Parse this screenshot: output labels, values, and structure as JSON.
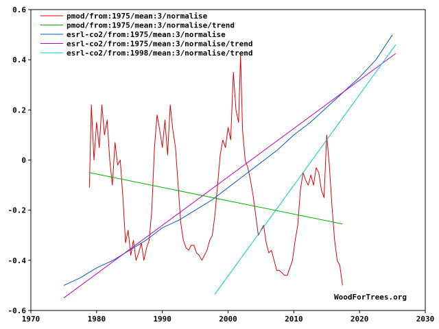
{
  "chart_data": {
    "type": "line",
    "title": "",
    "xlabel": "",
    "ylabel": "",
    "xlim": [
      1970,
      2030
    ],
    "ylim": [
      -0.6,
      0.6
    ],
    "grid": false,
    "legend_position": "top-left",
    "credit": "WoodForTrees.org",
    "x_ticks": [
      {
        "value": 1970,
        "label": "1970"
      },
      {
        "value": 1980,
        "label": "1980"
      },
      {
        "value": 1990,
        "label": "1990"
      },
      {
        "value": 2000,
        "label": "2000"
      },
      {
        "value": 2010,
        "label": "2010"
      },
      {
        "value": 2020,
        "label": "2020"
      },
      {
        "value": 2030,
        "label": "2030"
      }
    ],
    "y_ticks": [
      {
        "value": 0.6,
        "label": "0.6"
      },
      {
        "value": 0.4,
        "label": "0.4"
      },
      {
        "value": 0.2,
        "label": "0.2"
      },
      {
        "value": 0,
        "label": "0"
      },
      {
        "value": -0.2,
        "label": "-0.2"
      },
      {
        "value": -0.4,
        "label": "-0.4"
      },
      {
        "value": -0.6,
        "label": "-0.6"
      }
    ],
    "series": [
      {
        "name": "pmod/from:1975/mean:3/normalise",
        "color": "#dd0000",
        "x": [
          1978.9,
          1979.2,
          1979.6,
          1980.0,
          1980.4,
          1980.8,
          1981.2,
          1981.6,
          1982.0,
          1982.4,
          1982.8,
          1983.2,
          1983.6,
          1984.0,
          1984.4,
          1984.8,
          1985.2,
          1985.6,
          1986.0,
          1986.4,
          1986.8,
          1987.2,
          1987.6,
          1988.0,
          1988.4,
          1988.8,
          1989.2,
          1989.6,
          1990.0,
          1990.4,
          1990.8,
          1991.2,
          1991.6,
          1992.0,
          1992.4,
          1992.8,
          1993.2,
          1993.6,
          1994.0,
          1994.4,
          1994.8,
          1995.2,
          1995.6,
          1996.0,
          1996.4,
          1996.8,
          1997.2,
          1997.6,
          1998.0,
          1998.4,
          1998.8,
          1999.2,
          1999.6,
          2000.0,
          2000.4,
          2000.8,
          2001.2,
          2001.6,
          2001.9,
          2002.2,
          2002.6,
          2003.0,
          2003.4,
          2003.8,
          2004.2,
          2004.6,
          2005.0,
          2005.4,
          2005.8,
          2006.2,
          2006.6,
          2007.0,
          2007.4,
          2007.8,
          2008.2,
          2008.6,
          2009.0,
          2009.4,
          2009.8,
          2010.2,
          2010.6,
          2011.0,
          2011.4,
          2011.8,
          2012.2,
          2012.6,
          2013.0,
          2013.4,
          2013.8,
          2014.2,
          2014.6,
          2015.0,
          2015.4,
          2015.8,
          2016.2,
          2016.6,
          2017.0,
          2017.4
        ],
        "values": [
          -0.11,
          0.22,
          0.0,
          0.15,
          0.05,
          0.22,
          0.1,
          0.16,
          0.0,
          -0.1,
          0.07,
          -0.02,
          0.0,
          -0.15,
          -0.33,
          -0.28,
          -0.38,
          -0.32,
          -0.4,
          -0.37,
          -0.33,
          -0.4,
          -0.35,
          -0.32,
          -0.2,
          0.05,
          0.18,
          0.12,
          0.05,
          0.16,
          0.02,
          0.22,
          0.12,
          0.05,
          -0.1,
          -0.25,
          -0.32,
          -0.35,
          -0.36,
          -0.34,
          -0.34,
          -0.37,
          -0.38,
          -0.4,
          -0.38,
          -0.36,
          -0.32,
          -0.3,
          -0.22,
          -0.1,
          0.02,
          0.08,
          0.05,
          0.13,
          0.08,
          0.35,
          0.2,
          0.15,
          0.42,
          0.12,
          0.0,
          -0.03,
          -0.08,
          -0.14,
          -0.22,
          -0.3,
          -0.28,
          -0.26,
          -0.33,
          -0.37,
          -0.36,
          -0.4,
          -0.44,
          -0.44,
          -0.45,
          -0.46,
          -0.46,
          -0.43,
          -0.4,
          -0.32,
          -0.26,
          -0.12,
          -0.05,
          -0.08,
          -0.1,
          -0.06,
          -0.1,
          -0.03,
          -0.05,
          -0.12,
          -0.15,
          0.1,
          -0.02,
          -0.18,
          -0.32,
          -0.4,
          -0.42,
          -0.5
        ]
      },
      {
        "name": "pmod/from:1975/mean:3/normalise/trend",
        "color": "#00aa00",
        "x": [
          1978.9,
          2017.4
        ],
        "values": [
          -0.05,
          -0.255
        ]
      },
      {
        "name": "esrl-co2/from:1975/mean:3/normalise",
        "color": "#0055cc",
        "x": [
          1975.0,
          1977.5,
          1980.0,
          1982.5,
          1985.0,
          1987.5,
          1990.0,
          1992.5,
          1995.0,
          1997.5,
          2000.0,
          2002.5,
          2005.0,
          2007.5,
          2010.0,
          2012.5,
          2015.0,
          2017.5,
          2020.0,
          2022.5,
          2025.0
        ],
        "values": [
          -0.5,
          -0.47,
          -0.43,
          -0.4,
          -0.36,
          -0.32,
          -0.27,
          -0.24,
          -0.2,
          -0.16,
          -0.11,
          -0.06,
          -0.01,
          0.04,
          0.1,
          0.15,
          0.21,
          0.27,
          0.33,
          0.4,
          0.5
        ]
      },
      {
        "name": "esrl-co2/from:1975/mean:3/normalise/trend",
        "color": "#bb00bb",
        "x": [
          1975.0,
          2025.5
        ],
        "values": [
          -0.55,
          0.425
        ]
      },
      {
        "name": "esrl-co2/from:1998/mean:3/normalise/trend",
        "color": "#00cccc",
        "x": [
          1998.0,
          2025.5
        ],
        "values": [
          -0.535,
          0.46
        ]
      }
    ]
  }
}
